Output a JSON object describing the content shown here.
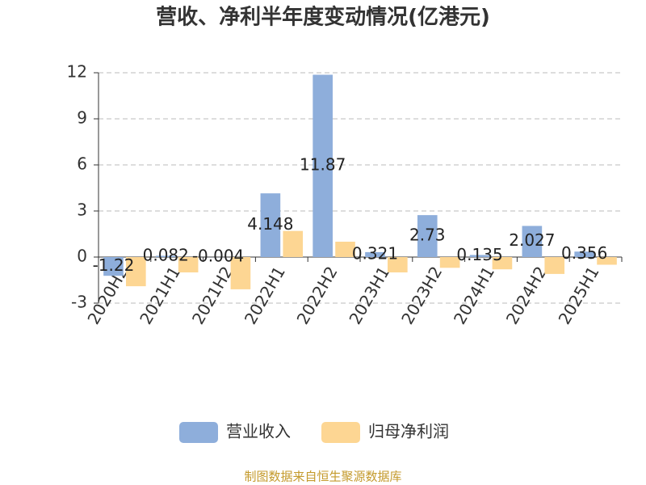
{
  "chart_data": {
    "type": "bar",
    "title": "营收、净利半年度变动情况(亿港元)",
    "categories": [
      "2020H2",
      "2021H1",
      "2021H2",
      "2022H1",
      "2022H2",
      "2023H1",
      "2023H2",
      "2024H1",
      "2024H2",
      "2025H1"
    ],
    "series": [
      {
        "name": "营业收入",
        "color": "#8eaedb",
        "values": [
          -1.22,
          0.082,
          -0.004,
          4.148,
          11.87,
          0.321,
          2.73,
          0.135,
          2.027,
          0.356
        ],
        "labels": true
      },
      {
        "name": "归母净利润",
        "color": "#fdd693",
        "values": [
          -1.9,
          -1.0,
          -2.1,
          1.7,
          1.0,
          -1.0,
          -0.7,
          -0.8,
          -1.1,
          -0.5
        ]
      }
    ],
    "ylim": [
      -3,
      12
    ],
    "yticks": [
      -3,
      0,
      3,
      6,
      9,
      12
    ],
    "grid": true,
    "source": "制图数据来自恒生聚源数据库"
  }
}
